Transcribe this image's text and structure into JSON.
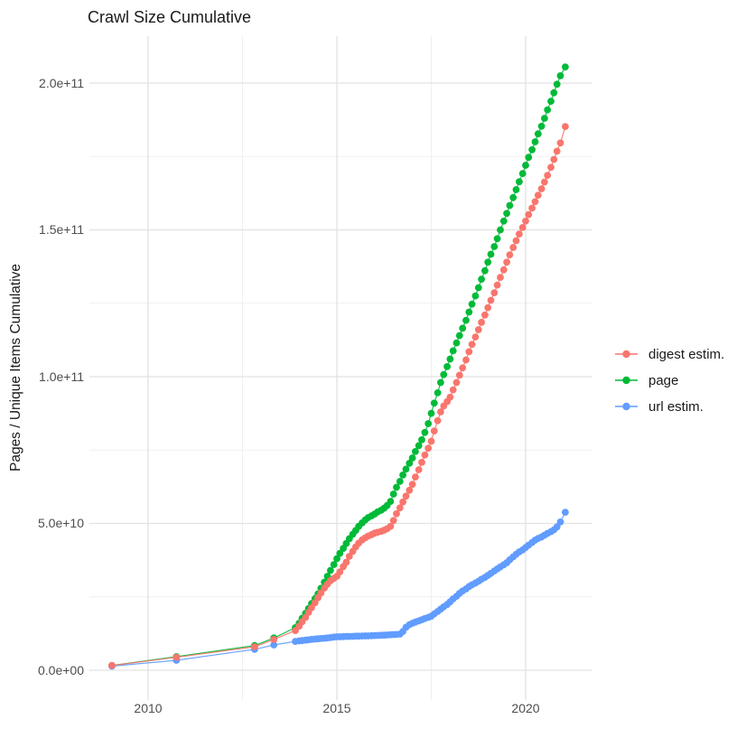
{
  "title": "Crawl Size Cumulative",
  "y_axis": {
    "label": "Pages / Unique Items Cumulative",
    "ticks": [
      "0.0e+00",
      "5.0e+10",
      "1.0e+11",
      "1.5e+11",
      "2.0e+11"
    ]
  },
  "x_axis": {
    "ticks": [
      "2010",
      "2015",
      "2020"
    ]
  },
  "legend": {
    "items": [
      {
        "label": "digest estim.",
        "color": "#F8766D"
      },
      {
        "label": "page",
        "color": "#00BA38"
      },
      {
        "label": "url estim.",
        "color": "#619CFF"
      }
    ]
  },
  "colors": {
    "digest": "#F8766D",
    "page": "#00BA38",
    "url": "#619CFF",
    "grid_major": "#e2e2e2",
    "grid_minor": "#f0f0f0"
  },
  "chart_data": {
    "type": "scatter",
    "title": "Crawl Size Cumulative",
    "xlabel": "",
    "ylabel": "Pages / Unique Items Cumulative",
    "unit_note": "point values are cumulative counts in billions (value x 1e9)",
    "grid": true,
    "legend_position": "right",
    "xlim": [
      2008.45,
      2021.65
    ],
    "ylim_e9": [
      -10,
      215.5
    ],
    "x_major_ticks": [
      2010,
      2015,
      2020
    ],
    "x_minor_ticks": [
      2012.5,
      2017.5
    ],
    "y_major_ticks_e9": [
      0,
      50,
      100,
      150,
      200
    ],
    "y_minor_ticks_e9": [
      25,
      75,
      125,
      175
    ],
    "y_tick_labels": [
      "0.0e+00",
      "5.0e+10",
      "1.0e+11",
      "1.5e+11",
      "2.0e+11"
    ],
    "z_order": [
      1,
      2,
      0
    ],
    "series": [
      {
        "name": "digest estim.",
        "color": "#F8766D",
        "points": [
          [
            2009.04,
            1.6
          ],
          [
            2010.75,
            4.4
          ],
          [
            2012.82,
            8.0
          ],
          [
            2013.33,
            10.5
          ],
          [
            2013.9,
            13.5
          ],
          [
            2014.0,
            15
          ],
          [
            2014.08,
            16.5
          ],
          [
            2014.17,
            18
          ],
          [
            2014.25,
            19.7
          ],
          [
            2014.33,
            21.3
          ],
          [
            2014.42,
            23
          ],
          [
            2014.5,
            24.7
          ],
          [
            2014.58,
            26.3
          ],
          [
            2014.67,
            28
          ],
          [
            2014.75,
            29.3
          ],
          [
            2014.83,
            30.5
          ],
          [
            2014.92,
            31.3
          ],
          [
            2015.0,
            32
          ],
          [
            2015.08,
            33.5
          ],
          [
            2015.17,
            35.3
          ],
          [
            2015.25,
            36.8
          ],
          [
            2015.33,
            38.8
          ],
          [
            2015.42,
            40.5
          ],
          [
            2015.5,
            42
          ],
          [
            2015.58,
            43.3
          ],
          [
            2015.67,
            44.4
          ],
          [
            2015.75,
            45.1
          ],
          [
            2015.83,
            45.7
          ],
          [
            2015.92,
            46.2
          ],
          [
            2016.0,
            46.7
          ],
          [
            2016.08,
            47
          ],
          [
            2016.17,
            47.3
          ],
          [
            2016.25,
            47.7
          ],
          [
            2016.33,
            48.2
          ],
          [
            2016.42,
            49
          ],
          [
            2016.5,
            51
          ],
          [
            2016.58,
            53.3
          ],
          [
            2016.67,
            55.3
          ],
          [
            2016.75,
            57.3
          ],
          [
            2016.83,
            59.3
          ],
          [
            2016.92,
            61.3
          ],
          [
            2017.0,
            63.3
          ],
          [
            2017.08,
            65.8
          ],
          [
            2017.17,
            68.3
          ],
          [
            2017.25,
            70.8
          ],
          [
            2017.33,
            73.3
          ],
          [
            2017.42,
            75.6
          ],
          [
            2017.5,
            78
          ],
          [
            2017.58,
            81.5
          ],
          [
            2017.67,
            85
          ],
          [
            2017.75,
            88
          ],
          [
            2017.83,
            90
          ],
          [
            2017.92,
            91.5
          ],
          [
            2018.0,
            93
          ],
          [
            2018.08,
            95.5
          ],
          [
            2018.17,
            98
          ],
          [
            2018.25,
            100.5
          ],
          [
            2018.33,
            103
          ],
          [
            2018.42,
            105.7
          ],
          [
            2018.5,
            108.5
          ],
          [
            2018.58,
            111
          ],
          [
            2018.67,
            113.5
          ],
          [
            2018.75,
            116
          ],
          [
            2018.83,
            118.5
          ],
          [
            2018.92,
            121
          ],
          [
            2019.0,
            123.5
          ],
          [
            2019.08,
            126
          ],
          [
            2019.17,
            128.6
          ],
          [
            2019.25,
            131.2
          ],
          [
            2019.33,
            133.8
          ],
          [
            2019.42,
            136.4
          ],
          [
            2019.5,
            139
          ],
          [
            2019.58,
            141.5
          ],
          [
            2019.67,
            144
          ],
          [
            2019.75,
            146.3
          ],
          [
            2019.83,
            148.6
          ],
          [
            2019.92,
            150.8
          ],
          [
            2020.0,
            153
          ],
          [
            2020.08,
            155.2
          ],
          [
            2020.17,
            157.4
          ],
          [
            2020.25,
            159.6
          ],
          [
            2020.33,
            161.8
          ],
          [
            2020.42,
            164
          ],
          [
            2020.5,
            166.3
          ],
          [
            2020.58,
            168.6
          ],
          [
            2020.67,
            171.3
          ],
          [
            2020.75,
            174
          ],
          [
            2020.83,
            176.8
          ],
          [
            2020.92,
            179.6
          ],
          [
            2021.05,
            185.2
          ]
        ]
      },
      {
        "name": "page",
        "color": "#00BA38",
        "points": [
          [
            2009.04,
            1.6
          ],
          [
            2010.75,
            4.6
          ],
          [
            2012.82,
            8.4
          ],
          [
            2013.33,
            11
          ],
          [
            2013.9,
            14.5
          ],
          [
            2014.0,
            16
          ],
          [
            2014.08,
            17.7
          ],
          [
            2014.17,
            19.4
          ],
          [
            2014.25,
            21
          ],
          [
            2014.33,
            22.7
          ],
          [
            2014.42,
            24.4
          ],
          [
            2014.5,
            26
          ],
          [
            2014.58,
            27.9
          ],
          [
            2014.67,
            30
          ],
          [
            2014.75,
            32
          ],
          [
            2014.83,
            34
          ],
          [
            2014.92,
            36
          ],
          [
            2015.0,
            38
          ],
          [
            2015.08,
            39.8
          ],
          [
            2015.17,
            41.5
          ],
          [
            2015.25,
            43.2
          ],
          [
            2015.33,
            44.8
          ],
          [
            2015.42,
            46.3
          ],
          [
            2015.5,
            47.6
          ],
          [
            2015.58,
            49
          ],
          [
            2015.67,
            50.2
          ],
          [
            2015.75,
            51.2
          ],
          [
            2015.83,
            52
          ],
          [
            2015.92,
            52.6
          ],
          [
            2016.0,
            53.2
          ],
          [
            2016.08,
            53.9
          ],
          [
            2016.17,
            54.5
          ],
          [
            2016.25,
            55.2
          ],
          [
            2016.33,
            56.1
          ],
          [
            2016.42,
            57.5
          ],
          [
            2016.5,
            60
          ],
          [
            2016.58,
            62.3
          ],
          [
            2016.67,
            64.3
          ],
          [
            2016.75,
            66.5
          ],
          [
            2016.83,
            68.5
          ],
          [
            2016.92,
            70.5
          ],
          [
            2017.0,
            72.3
          ],
          [
            2017.08,
            74.5
          ],
          [
            2017.17,
            76.5
          ],
          [
            2017.25,
            78.5
          ],
          [
            2017.33,
            81
          ],
          [
            2017.42,
            84
          ],
          [
            2017.5,
            87.5
          ],
          [
            2017.58,
            91
          ],
          [
            2017.67,
            94.5
          ],
          [
            2017.75,
            98
          ],
          [
            2017.83,
            100.7
          ],
          [
            2017.92,
            103.4
          ],
          [
            2018.0,
            106
          ],
          [
            2018.08,
            108.8
          ],
          [
            2018.17,
            111.5
          ],
          [
            2018.25,
            114
          ],
          [
            2018.33,
            116.5
          ],
          [
            2018.42,
            119.2
          ],
          [
            2018.5,
            122
          ],
          [
            2018.58,
            124.7
          ],
          [
            2018.67,
            127.5
          ],
          [
            2018.75,
            130.3
          ],
          [
            2018.83,
            133.2
          ],
          [
            2018.92,
            136.1
          ],
          [
            2019.0,
            139
          ],
          [
            2019.08,
            141.7
          ],
          [
            2019.17,
            144.3
          ],
          [
            2019.25,
            147
          ],
          [
            2019.33,
            150
          ],
          [
            2019.42,
            153
          ],
          [
            2019.5,
            155.6
          ],
          [
            2019.58,
            158.3
          ],
          [
            2019.67,
            161
          ],
          [
            2019.75,
            163.7
          ],
          [
            2019.83,
            166.4
          ],
          [
            2019.92,
            169.2
          ],
          [
            2020.0,
            172
          ],
          [
            2020.08,
            174.7
          ],
          [
            2020.17,
            177.3
          ],
          [
            2020.25,
            180
          ],
          [
            2020.33,
            182.7
          ],
          [
            2020.42,
            185.3
          ],
          [
            2020.5,
            188
          ],
          [
            2020.58,
            190.9
          ],
          [
            2020.67,
            193.8
          ],
          [
            2020.75,
            196.7
          ],
          [
            2020.83,
            199.6
          ],
          [
            2020.92,
            202.5
          ],
          [
            2021.05,
            205.5
          ]
        ]
      },
      {
        "name": "url estim.",
        "color": "#619CFF",
        "points": [
          [
            2009.04,
            1.4
          ],
          [
            2010.75,
            3.4
          ],
          [
            2012.82,
            7.1
          ],
          [
            2013.33,
            8.6
          ],
          [
            2013.9,
            9.8
          ],
          [
            2014.0,
            10
          ],
          [
            2014.08,
            10.1
          ],
          [
            2014.17,
            10.25
          ],
          [
            2014.25,
            10.35
          ],
          [
            2014.33,
            10.5
          ],
          [
            2014.42,
            10.6
          ],
          [
            2014.5,
            10.7
          ],
          [
            2014.58,
            10.8
          ],
          [
            2014.67,
            10.9
          ],
          [
            2014.75,
            11
          ],
          [
            2014.83,
            11.1
          ],
          [
            2014.92,
            11.3
          ],
          [
            2015.0,
            11.4
          ],
          [
            2015.08,
            11.4
          ],
          [
            2015.17,
            11.45
          ],
          [
            2015.25,
            11.5
          ],
          [
            2015.33,
            11.5
          ],
          [
            2015.42,
            11.55
          ],
          [
            2015.5,
            11.6
          ],
          [
            2015.58,
            11.6
          ],
          [
            2015.67,
            11.65
          ],
          [
            2015.75,
            11.7
          ],
          [
            2015.83,
            11.7
          ],
          [
            2015.92,
            11.75
          ],
          [
            2016.0,
            11.8
          ],
          [
            2016.08,
            11.85
          ],
          [
            2016.17,
            11.9
          ],
          [
            2016.25,
            11.95
          ],
          [
            2016.33,
            12
          ],
          [
            2016.42,
            12.1
          ],
          [
            2016.5,
            12.15
          ],
          [
            2016.58,
            12.2
          ],
          [
            2016.67,
            12.3
          ],
          [
            2016.75,
            13.2
          ],
          [
            2016.83,
            14.6
          ],
          [
            2016.92,
            15.5
          ],
          [
            2017.0,
            16
          ],
          [
            2017.08,
            16.4
          ],
          [
            2017.17,
            16.8
          ],
          [
            2017.25,
            17.2
          ],
          [
            2017.33,
            17.6
          ],
          [
            2017.42,
            18
          ],
          [
            2017.5,
            18.4
          ],
          [
            2017.58,
            19.2
          ],
          [
            2017.67,
            20
          ],
          [
            2017.75,
            20.8
          ],
          [
            2017.83,
            21.6
          ],
          [
            2017.92,
            22.4
          ],
          [
            2018.0,
            23.3
          ],
          [
            2018.08,
            24.3
          ],
          [
            2018.17,
            25.2
          ],
          [
            2018.25,
            26.2
          ],
          [
            2018.33,
            27
          ],
          [
            2018.42,
            27.7
          ],
          [
            2018.5,
            28.5
          ],
          [
            2018.58,
            29.1
          ],
          [
            2018.67,
            29.7
          ],
          [
            2018.75,
            30.3
          ],
          [
            2018.83,
            31
          ],
          [
            2018.92,
            31.6
          ],
          [
            2019.0,
            32.3
          ],
          [
            2019.08,
            33
          ],
          [
            2019.17,
            33.8
          ],
          [
            2019.25,
            34.5
          ],
          [
            2019.33,
            35.2
          ],
          [
            2019.42,
            35.9
          ],
          [
            2019.5,
            36.6
          ],
          [
            2019.58,
            37.6
          ],
          [
            2019.67,
            38.6
          ],
          [
            2019.75,
            39.5
          ],
          [
            2019.83,
            40.3
          ],
          [
            2019.92,
            41
          ],
          [
            2020.0,
            41.8
          ],
          [
            2020.08,
            42.6
          ],
          [
            2020.17,
            43.5
          ],
          [
            2020.25,
            44.3
          ],
          [
            2020.33,
            44.9
          ],
          [
            2020.42,
            45.4
          ],
          [
            2020.5,
            46
          ],
          [
            2020.58,
            46.6
          ],
          [
            2020.67,
            47.2
          ],
          [
            2020.75,
            47.8
          ],
          [
            2020.83,
            48.8
          ],
          [
            2020.92,
            50.5
          ],
          [
            2021.05,
            53.8
          ]
        ]
      }
    ]
  }
}
